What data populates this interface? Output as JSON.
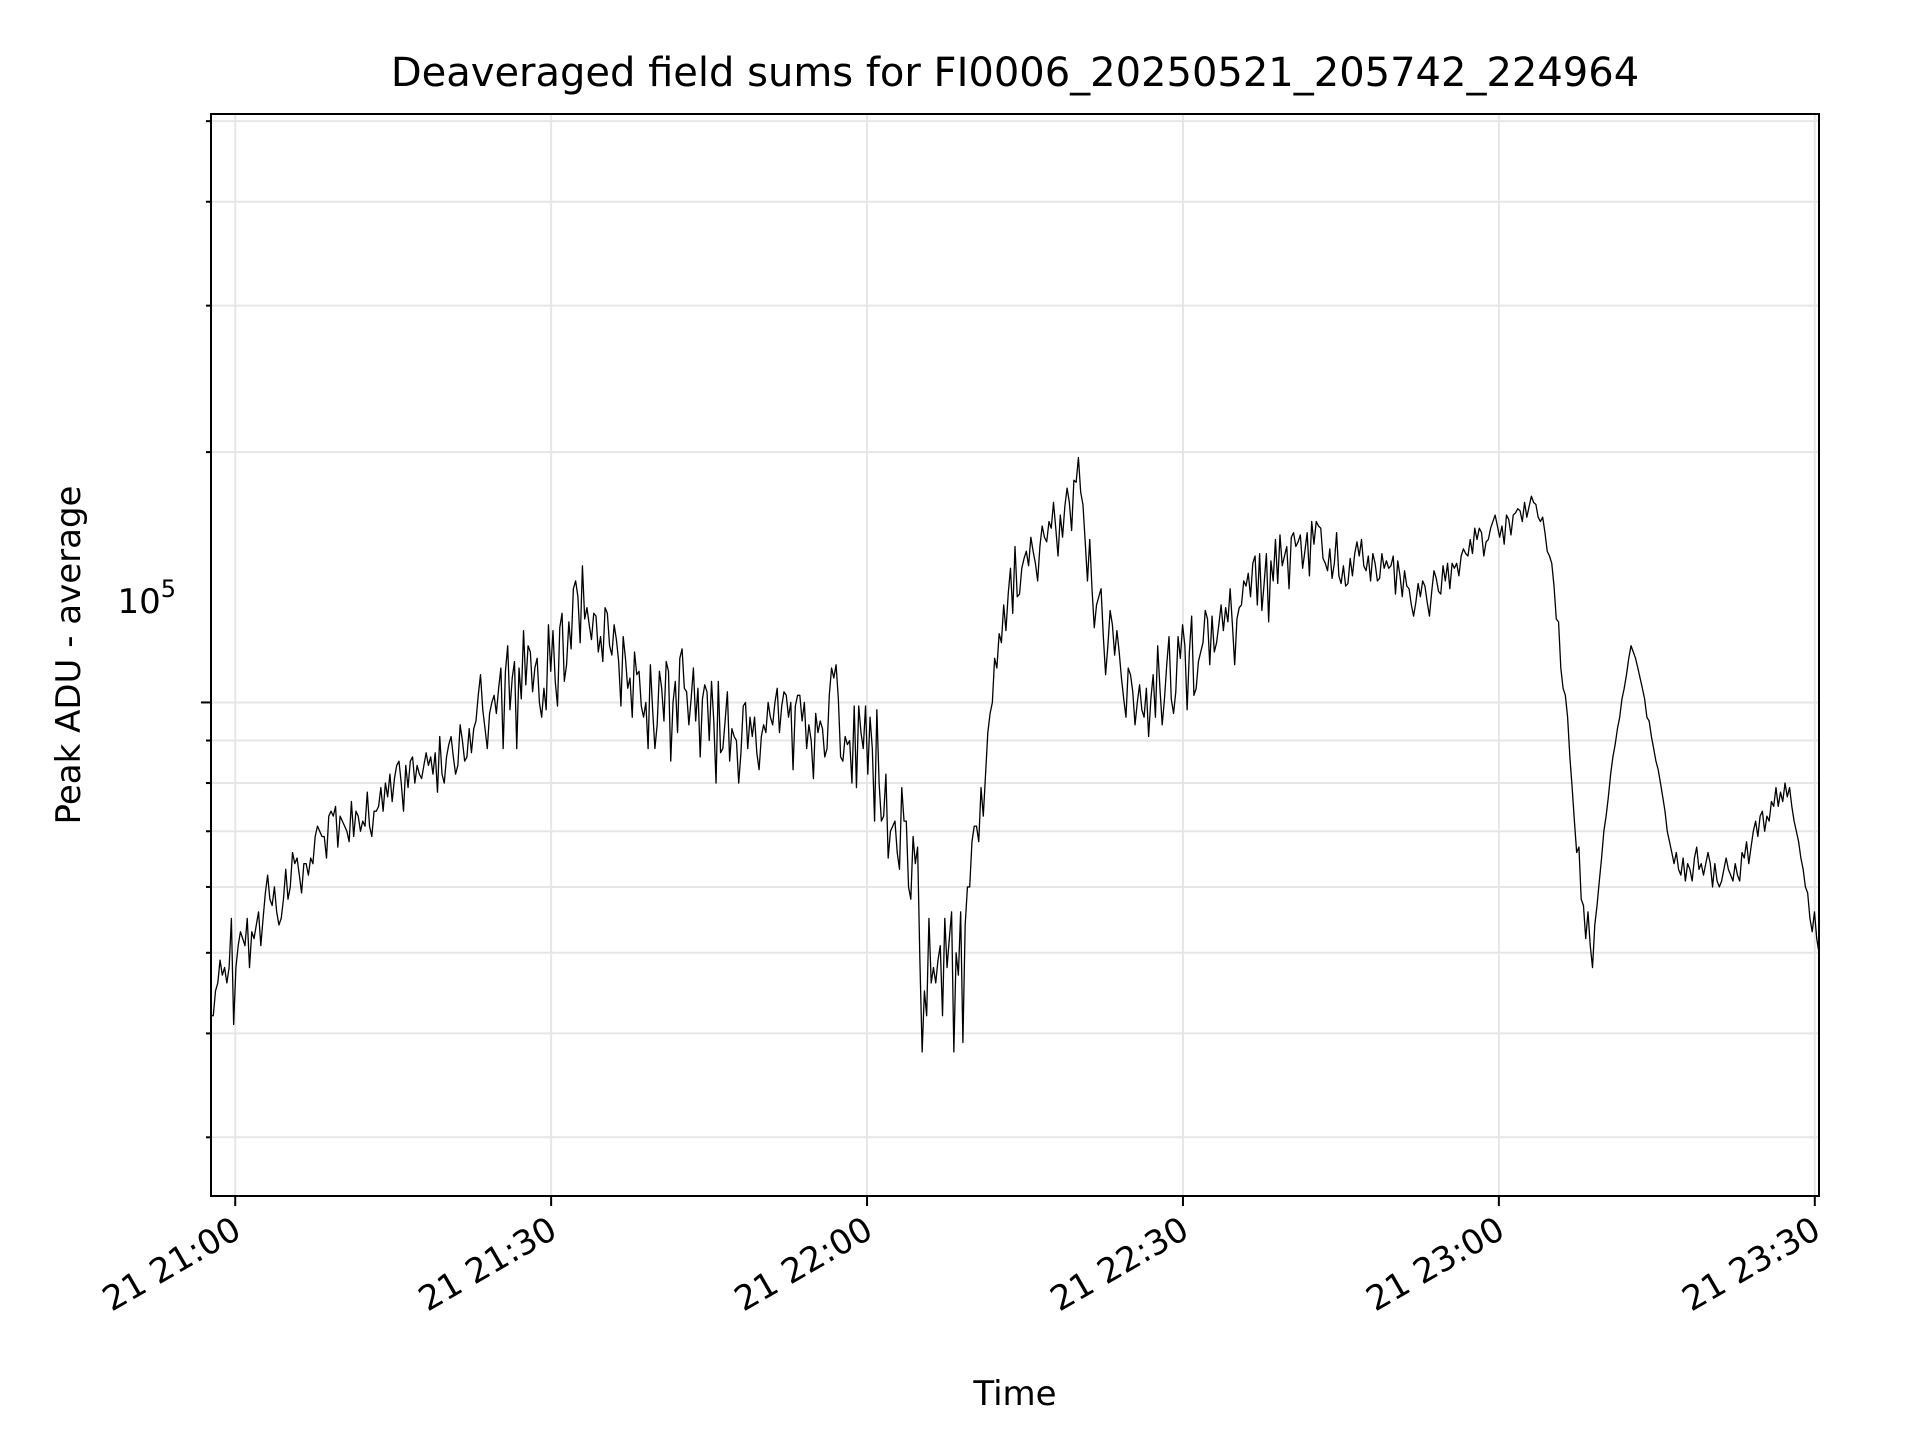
{
  "chart_data": {
    "type": "line",
    "title": "Deaveraged field sums for FI0006_20250521_205742_224964",
    "xlabel": "Time",
    "ylabel": "Peak ADU - average",
    "x_tick_labels": [
      "21 21:00",
      "21 21:30",
      "21 22:00",
      "21 22:30",
      "21 23:00",
      "21 23:30"
    ],
    "x_ticks": [
      "2025-05-21 21:00",
      "2025-05-21 21:30",
      "2025-05-21 22:00",
      "2025-05-21 22:30",
      "2025-05-21 23:00",
      "2025-05-21 23:30"
    ],
    "xlim": [
      "2025-05-21 20:57:42",
      "2025-05-21 23:30:24"
    ],
    "y_tick_base": "10",
    "y_tick_exponent": "5",
    "y_scale": "log",
    "ylim": [
      25500,
      510000
    ],
    "grid": true,
    "colors": {
      "line": "#000000",
      "grid": "#e6e6e6",
      "axes": "#000000"
    },
    "series": [
      {
        "y": [
          42000,
          42000,
          45000,
          46000,
          49000,
          47000,
          48000,
          46000,
          48000,
          55000,
          41000,
          48000,
          51000,
          53000,
          52000,
          51000,
          55000,
          48000,
          53000,
          52000,
          54000,
          56000,
          51000,
          55000,
          59000,
          62000,
          58000,
          57000,
          60000,
          56000,
          54000,
          55000,
          58000,
          63000,
          58000,
          60000,
          66000,
          64000,
          65000,
          62000,
          59000,
          64000,
          64000,
          62000,
          65000,
          64000,
          69000,
          71000,
          70000,
          69000,
          69000,
          65000,
          73000,
          74000,
          73000,
          75000,
          67000,
          73000,
          72000,
          71000,
          70000,
          68000,
          76000,
          69000,
          74000,
          73000,
          70000,
          72000,
          71000,
          78000,
          71000,
          69000,
          74000,
          74000,
          75000,
          79000,
          74000,
          80000,
          77000,
          82000,
          76000,
          81000,
          84000,
          85000,
          80000,
          74000,
          84000,
          79000,
          85000,
          86000,
          80000,
          84000,
          82000,
          81000,
          84000,
          87000,
          84000,
          86000,
          82000,
          87000,
          78000,
          91000,
          82000,
          80000,
          86000,
          89000,
          91000,
          86000,
          82000,
          84000,
          94000,
          90000,
          85000,
          86000,
          93000,
          87000,
          93000,
          95000,
          102000,
          108000,
          98000,
          93000,
          88000,
          97000,
          100000,
          102000,
          97000,
          104000,
          110000,
          88000,
          109000,
          117000,
          98000,
          107000,
          112000,
          88000,
          110000,
          101000,
          122000,
          105000,
          117000,
          115000,
          103000,
          110000,
          113000,
          100000,
          96000,
          104000,
          98000,
          124000,
          109000,
          122000,
          106000,
          99000,
          123000,
          128000,
          106000,
          111000,
          125000,
          116000,
          137000,
          140000,
          134000,
          118000,
          146000,
          126000,
          130000,
          124000,
          119000,
          128000,
          127000,
          115000,
          120000,
          112000,
          130000,
          128000,
          117000,
          114000,
          124000,
          119000,
          112000,
          99000,
          120000,
          113000,
          104000,
          107000,
          96000,
          115000,
          108000,
          109000,
          99000,
          96000,
          100000,
          88000,
          111000,
          98000,
          88000,
          94000,
          109000,
          104000,
          95000,
          112000,
          109000,
          85000,
          100000,
          106000,
          92000,
          113000,
          116000,
          104000,
          103000,
          94000,
          101000,
          110000,
          95000,
          104000,
          86000,
          101000,
          105000,
          103000,
          90000,
          106000,
          95000,
          80000,
          106000,
          87000,
          88000,
          95000,
          103000,
          85000,
          93000,
          91000,
          90000,
          80000,
          87000,
          99000,
          100000,
          88000,
          96000,
          91000,
          96000,
          87000,
          83000,
          91000,
          94000,
          92000,
          100000,
          96000,
          94000,
          100000,
          104000,
          92000,
          99000,
          103000,
          102000,
          96000,
          100000,
          83000,
          99000,
          102000,
          102000,
          95000,
          100000,
          88000,
          94000,
          90000,
          81000,
          97000,
          92000,
          95000,
          93000,
          86000,
          88000,
          102000,
          110000,
          107000,
          111000,
          101000,
          86000,
          85000,
          91000,
          89000,
          90000,
          80000,
          99000,
          79000,
          99000,
          92000,
          88000,
          99000,
          82000,
          96000,
          88000,
          72000,
          98000,
          80000,
          72000,
          73000,
          82000,
          65000,
          70000,
          71000,
          72000,
          66000,
          63000,
          79000,
          72000,
          72000,
          60000,
          58000,
          69000,
          64000,
          67000,
          49000,
          38000,
          45000,
          42000,
          55000,
          46000,
          48000,
          46000,
          49000,
          51000,
          42000,
          55000,
          48000,
          52000,
          56000,
          38000,
          50000,
          47000,
          56000,
          39000,
          54000,
          60000,
          60000,
          68000,
          71000,
          71000,
          68000,
          79000,
          73000,
          82000,
          92000,
          97000,
          100000,
          113000,
          110000,
          121000,
          118000,
          131000,
          122000,
          135000,
          145000,
          128000,
          154000,
          134000,
          135000,
          145000,
          149000,
          152000,
          146000,
          158000,
          152000,
          147000,
          140000,
          154000,
          163000,
          158000,
          156000,
          165000,
          162000,
          174000,
          162000,
          150000,
          168000,
          158000,
          172000,
          181000,
          174000,
          161000,
          185000,
          184000,
          197000,
          179000,
          173000,
          156000,
          140000,
          157000,
          137000,
          123000,
          131000,
          134000,
          137000,
          120000,
          108000,
          117000,
          129000,
          124000,
          114000,
          122000,
          115000,
          107000,
          101000,
          96000,
          110000,
          108000,
          103000,
          94000,
          100000,
          105000,
          98000,
          96000,
          104000,
          91000,
          101000,
          108000,
          96000,
          117000,
          104000,
          94000,
          101000,
          111000,
          120000,
          101000,
          97000,
          103000,
          120000,
          113000,
          124000,
          117000,
          98000,
          115000,
          127000,
          102000,
          104000,
          112000,
          115000,
          118000,
          129000,
          126000,
          111000,
          127000,
          115000,
          118000,
          124000,
          131000,
          122000,
          130000,
          125000,
          137000,
          124000,
          111000,
          126000,
          130000,
          131000,
          140000,
          138000,
          143000,
          134000,
          147000,
          150000,
          131000,
          151000,
          129000,
          139000,
          151000,
          125000,
          148000,
          140000,
          157000,
          139000,
          159000,
          146000,
          150000,
          154000,
          137000,
          158000,
          160000,
          154000,
          156000,
          159000,
          145000,
          152000,
          160000,
          142000,
          165000,
          155000,
          165000,
          163000,
          162000,
          149000,
          147000,
          144000,
          153000,
          141000,
          147000,
          160000,
          142000,
          139000,
          146000,
          138000,
          139000,
          149000,
          142000,
          151000,
          156000,
          150000,
          157000,
          146000,
          144000,
          150000,
          140000,
          151000,
          147000,
          140000,
          141000,
          151000,
          145000,
          148000,
          145000,
          146000,
          150000,
          135000,
          148000,
          142000,
          134000,
          144000,
          138000,
          137000,
          131000,
          127000,
          132000,
          139000,
          134000,
          140000,
          138000,
          132000,
          127000,
          136000,
          144000,
          141000,
          136000,
          135000,
          146000,
          140000,
          147000,
          137000,
          147000,
          145000,
          147000,
          142000,
          150000,
          153000,
          151000,
          150000,
          157000,
          151000,
          162000,
          157000,
          162000,
          160000,
          150000,
          156000,
          157000,
          162000,
          165000,
          168000,
          163000,
          158000,
          163000,
          155000,
          168000,
          166000,
          159000,
          168000,
          169000,
          171000,
          170000,
          165000,
          174000,
          167000,
          172000,
          177000,
          174000,
          173000,
          167000,
          165000,
          167000,
          160000,
          152000,
          150000,
          147000,
          138000,
          126000,
          125000,
          110000,
          104000,
          102000,
          96000,
          86000,
          79000,
          72000,
          66000,
          67000,
          58000,
          57000,
          52000,
          56000,
          51000,
          48000,
          54000,
          57000,
          61000,
          65000,
          70000,
          73000,
          77000,
          82000,
          86000,
          89000,
          93000,
          96000,
          101000,
          104000,
          108000,
          113000,
          117000,
          115000,
          113000,
          110000,
          107000,
          104000,
          101000,
          96000,
          95000,
          91000,
          88000,
          85000,
          83000,
          80000,
          77000,
          74000,
          70000,
          68000,
          66000,
          64000,
          66000,
          63000,
          62000,
          65000,
          61000,
          64000,
          63000,
          61000,
          65000,
          67000,
          63000,
          64000,
          62000,
          64000,
          66000,
          64000,
          60000,
          64000,
          61000,
          60000,
          61000,
          63000,
          65000,
          63000,
          62000,
          61000,
          64000,
          62000,
          61000,
          66000,
          65000,
          68000,
          64000,
          67000,
          70000,
          72000,
          69000,
          73000,
          74000,
          70000,
          73000,
          72000,
          76000,
          75000,
          79000,
          75000,
          78000,
          76000,
          80000,
          77000,
          79000,
          75000,
          72000,
          70000,
          68000,
          65000,
          63000,
          60000,
          59000,
          55000,
          53000,
          56000,
          52000,
          50000
        ]
      }
    ]
  }
}
